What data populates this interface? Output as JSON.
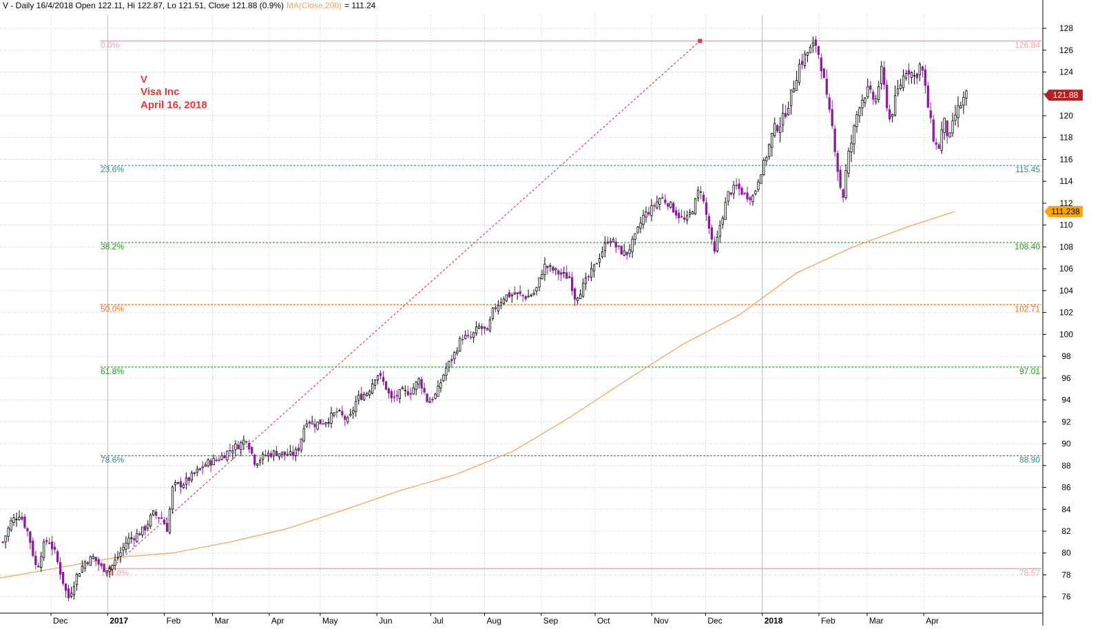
{
  "chart_data": {
    "type": "candlestick",
    "header": {
      "symbol_line": "V - Daily 16/4/2018 Open 122.11, Hi 122.87, Lo 121.51, Close 121.88 (0.9%)",
      "ma_label": "MA(Close,200)",
      "ma_value": "= 111.24"
    },
    "annotation": [
      "V",
      "Visa Inc",
      "April 16, 2018"
    ],
    "price_badges": [
      {
        "value": 121.88,
        "label": "121.88",
        "bg": "#b22222",
        "fg": "#ffffff"
      },
      {
        "value": 111.238,
        "label": "111.238",
        "bg": "#ffa500",
        "fg": "#000000"
      }
    ],
    "y_axis": {
      "min": 74.5,
      "max": 129.2,
      "ticks": [
        76,
        78,
        80,
        82,
        84,
        86,
        88,
        90,
        92,
        94,
        96,
        98,
        100,
        102,
        104,
        106,
        108,
        110,
        112,
        114,
        116,
        118,
        120,
        122,
        124,
        126,
        128
      ]
    },
    "x_axis": {
      "months": [
        {
          "label": "Dec",
          "bold": false,
          "t": 0.35
        },
        {
          "label": "2017",
          "bold": true,
          "t": 1.35
        },
        {
          "label": "Feb",
          "bold": false,
          "t": 2.35
        },
        {
          "label": "Mar",
          "bold": false,
          "t": 3.2
        },
        {
          "label": "Apr",
          "bold": false,
          "t": 4.2
        },
        {
          "label": "May",
          "bold": false,
          "t": 5.1
        },
        {
          "label": "Jun",
          "bold": false,
          "t": 6.1
        },
        {
          "label": "Jul",
          "bold": false,
          "t": 7.05
        },
        {
          "label": "Aug",
          "bold": false,
          "t": 8.0
        },
        {
          "label": "Sep",
          "bold": false,
          "t": 9.0
        },
        {
          "label": "Oct",
          "bold": false,
          "t": 9.95
        },
        {
          "label": "Nov",
          "bold": false,
          "t": 10.95
        },
        {
          "label": "Dec",
          "bold": false,
          "t": 11.9
        },
        {
          "label": "2018",
          "bold": true,
          "t": 12.9
        },
        {
          "label": "Feb",
          "bold": false,
          "t": 13.9
        },
        {
          "label": "Mar",
          "bold": false,
          "t": 14.75
        },
        {
          "label": "Apr",
          "bold": false,
          "t": 15.75
        }
      ],
      "t_min": -0.55,
      "t_max": 17.85
    },
    "fib_levels": [
      {
        "pct": "0.0%",
        "value": 126.84,
        "label": "126.84",
        "color": "#f4a0a8"
      },
      {
        "pct": "23.6%",
        "value": 115.45,
        "label": "115.45",
        "color": "#2e8b8b"
      },
      {
        "pct": "38.2%",
        "value": 108.4,
        "label": "108.40",
        "color": "#1e9a1e"
      },
      {
        "pct": "50.0%",
        "value": 102.71,
        "label": "102.71",
        "color": "#e8742a"
      },
      {
        "pct": "61.8%",
        "value": 97.01,
        "label": "97.01",
        "color": "#1e9a1e"
      },
      {
        "pct": "78.6%",
        "value": 88.9,
        "label": "88.90",
        "color": "#2e8b8b"
      },
      {
        "pct": "100.0%",
        "value": 78.57,
        "label": "78.57",
        "color": "#f4a0a8"
      }
    ],
    "fib_trend": {
      "from": {
        "t": 1.4,
        "value": 78.57
      },
      "to": {
        "t": 11.8,
        "value": 126.84
      }
    },
    "ma200": [
      {
        "t": -0.55,
        "value": 77.7
      },
      {
        "t": 1.5,
        "value": 79.6
      },
      {
        "t": 2.5,
        "value": 80.0
      },
      {
        "t": 3.5,
        "value": 81.0
      },
      {
        "t": 4.5,
        "value": 82.2
      },
      {
        "t": 5.5,
        "value": 83.9
      },
      {
        "t": 6.5,
        "value": 85.7
      },
      {
        "t": 7.5,
        "value": 87.2
      },
      {
        "t": 8.5,
        "value": 89.3
      },
      {
        "t": 9.5,
        "value": 92.4
      },
      {
        "t": 10.5,
        "value": 95.8
      },
      {
        "t": 11.5,
        "value": 99.1
      },
      {
        "t": 12.5,
        "value": 101.8
      },
      {
        "t": 13.5,
        "value": 105.6
      },
      {
        "t": 14.5,
        "value": 108.0
      },
      {
        "t": 15.5,
        "value": 109.9
      },
      {
        "t": 16.3,
        "value": 111.24
      }
    ],
    "close_path": [
      {
        "t": -0.5,
        "value": 81.0
      },
      {
        "t": -0.35,
        "value": 82.9
      },
      {
        "t": -0.2,
        "value": 83.6
      },
      {
        "t": -0.05,
        "value": 81.8
      },
      {
        "t": 0.1,
        "value": 78.4
      },
      {
        "t": 0.2,
        "value": 80.5
      },
      {
        "t": 0.3,
        "value": 81.3
      },
      {
        "t": 0.42,
        "value": 80.0
      },
      {
        "t": 0.55,
        "value": 77.6
      },
      {
        "t": 0.65,
        "value": 75.8
      },
      {
        "t": 0.8,
        "value": 77.9
      },
      {
        "t": 0.95,
        "value": 79.2
      },
      {
        "t": 1.1,
        "value": 79.6
      },
      {
        "t": 1.25,
        "value": 78.6
      },
      {
        "t": 1.4,
        "value": 78.6
      },
      {
        "t": 1.55,
        "value": 79.8
      },
      {
        "t": 1.7,
        "value": 81.2
      },
      {
        "t": 1.85,
        "value": 81.6
      },
      {
        "t": 2.0,
        "value": 82.2
      },
      {
        "t": 2.15,
        "value": 83.6
      },
      {
        "t": 2.3,
        "value": 83.2
      },
      {
        "t": 2.4,
        "value": 82.2
      },
      {
        "t": 2.5,
        "value": 86.1
      },
      {
        "t": 2.7,
        "value": 86.4
      },
      {
        "t": 2.9,
        "value": 87.3
      },
      {
        "t": 3.1,
        "value": 88.2
      },
      {
        "t": 3.3,
        "value": 88.6
      },
      {
        "t": 3.5,
        "value": 89.4
      },
      {
        "t": 3.7,
        "value": 90.0
      },
      {
        "t": 3.8,
        "value": 90.5
      },
      {
        "t": 3.95,
        "value": 88.3
      },
      {
        "t": 4.15,
        "value": 89.0
      },
      {
        "t": 4.35,
        "value": 89.2
      },
      {
        "t": 4.55,
        "value": 88.9
      },
      {
        "t": 4.7,
        "value": 89.3
      },
      {
        "t": 4.85,
        "value": 92.2
      },
      {
        "t": 5.0,
        "value": 91.8
      },
      {
        "t": 5.2,
        "value": 92.1
      },
      {
        "t": 5.4,
        "value": 92.9
      },
      {
        "t": 5.6,
        "value": 92.0
      },
      {
        "t": 5.75,
        "value": 94.1
      },
      {
        "t": 5.95,
        "value": 94.8
      },
      {
        "t": 6.1,
        "value": 96.5
      },
      {
        "t": 6.25,
        "value": 95.3
      },
      {
        "t": 6.35,
        "value": 94.0
      },
      {
        "t": 6.5,
        "value": 94.6
      },
      {
        "t": 6.7,
        "value": 94.8
      },
      {
        "t": 6.85,
        "value": 95.9
      },
      {
        "t": 7.0,
        "value": 93.8
      },
      {
        "t": 7.15,
        "value": 94.5
      },
      {
        "t": 7.3,
        "value": 96.7
      },
      {
        "t": 7.45,
        "value": 98.0
      },
      {
        "t": 7.6,
        "value": 99.8
      },
      {
        "t": 7.75,
        "value": 99.6
      },
      {
        "t": 7.9,
        "value": 100.7
      },
      {
        "t": 8.05,
        "value": 100.2
      },
      {
        "t": 8.15,
        "value": 102.2
      },
      {
        "t": 8.35,
        "value": 103.5
      },
      {
        "t": 8.55,
        "value": 103.7
      },
      {
        "t": 8.75,
        "value": 103.4
      },
      {
        "t": 8.9,
        "value": 103.9
      },
      {
        "t": 9.05,
        "value": 106.3
      },
      {
        "t": 9.2,
        "value": 105.9
      },
      {
        "t": 9.35,
        "value": 105.5
      },
      {
        "t": 9.5,
        "value": 105.2
      },
      {
        "t": 9.6,
        "value": 103.3
      },
      {
        "t": 9.75,
        "value": 104.5
      },
      {
        "t": 9.9,
        "value": 105.8
      },
      {
        "t": 10.05,
        "value": 107.4
      },
      {
        "t": 10.2,
        "value": 108.9
      },
      {
        "t": 10.35,
        "value": 107.8
      },
      {
        "t": 10.5,
        "value": 107.3
      },
      {
        "t": 10.65,
        "value": 108.8
      },
      {
        "t": 10.8,
        "value": 110.8
      },
      {
        "t": 10.95,
        "value": 111.5
      },
      {
        "t": 11.1,
        "value": 112.5
      },
      {
        "t": 11.25,
        "value": 112.0
      },
      {
        "t": 11.4,
        "value": 111.0
      },
      {
        "t": 11.55,
        "value": 110.3
      },
      {
        "t": 11.7,
        "value": 111.8
      },
      {
        "t": 11.8,
        "value": 113.6
      },
      {
        "t": 11.95,
        "value": 110.0
      },
      {
        "t": 12.05,
        "value": 107.2
      },
      {
        "t": 12.15,
        "value": 109.9
      },
      {
        "t": 12.3,
        "value": 112.9
      },
      {
        "t": 12.45,
        "value": 113.5
      },
      {
        "t": 12.6,
        "value": 112.7
      },
      {
        "t": 12.75,
        "value": 112.6
      },
      {
        "t": 12.85,
        "value": 114.6
      },
      {
        "t": 12.95,
        "value": 115.9
      },
      {
        "t": 13.1,
        "value": 118.7
      },
      {
        "t": 13.25,
        "value": 119.5
      },
      {
        "t": 13.4,
        "value": 121.7
      },
      {
        "t": 13.55,
        "value": 124.6
      },
      {
        "t": 13.7,
        "value": 125.8
      },
      {
        "t": 13.85,
        "value": 126.6
      },
      {
        "t": 13.95,
        "value": 124.4
      },
      {
        "t": 14.05,
        "value": 121.0
      },
      {
        "t": 14.15,
        "value": 118.5
      },
      {
        "t": 14.25,
        "value": 114.3
      },
      {
        "t": 14.32,
        "value": 112.4
      },
      {
        "t": 14.4,
        "value": 115.9
      },
      {
        "t": 14.5,
        "value": 118.2
      },
      {
        "t": 14.6,
        "value": 121.0
      },
      {
        "t": 14.75,
        "value": 122.3
      },
      {
        "t": 14.9,
        "value": 121.3
      },
      {
        "t": 15.0,
        "value": 124.1
      },
      {
        "t": 15.15,
        "value": 119.6
      },
      {
        "t": 15.3,
        "value": 122.4
      },
      {
        "t": 15.45,
        "value": 124.4
      },
      {
        "t": 15.6,
        "value": 123.5
      },
      {
        "t": 15.7,
        "value": 124.9
      },
      {
        "t": 15.8,
        "value": 121.6
      },
      {
        "t": 15.9,
        "value": 118.4
      },
      {
        "t": 16.0,
        "value": 116.7
      },
      {
        "t": 16.1,
        "value": 119.6
      },
      {
        "t": 16.2,
        "value": 117.7
      },
      {
        "t": 16.3,
        "value": 120.0
      },
      {
        "t": 16.4,
        "value": 121.0
      },
      {
        "t": 16.5,
        "value": 121.88
      }
    ],
    "candle_colors": {
      "up": "#ffffff",
      "down": "#8b1a9c",
      "outline": "#000000"
    },
    "grid": true
  }
}
